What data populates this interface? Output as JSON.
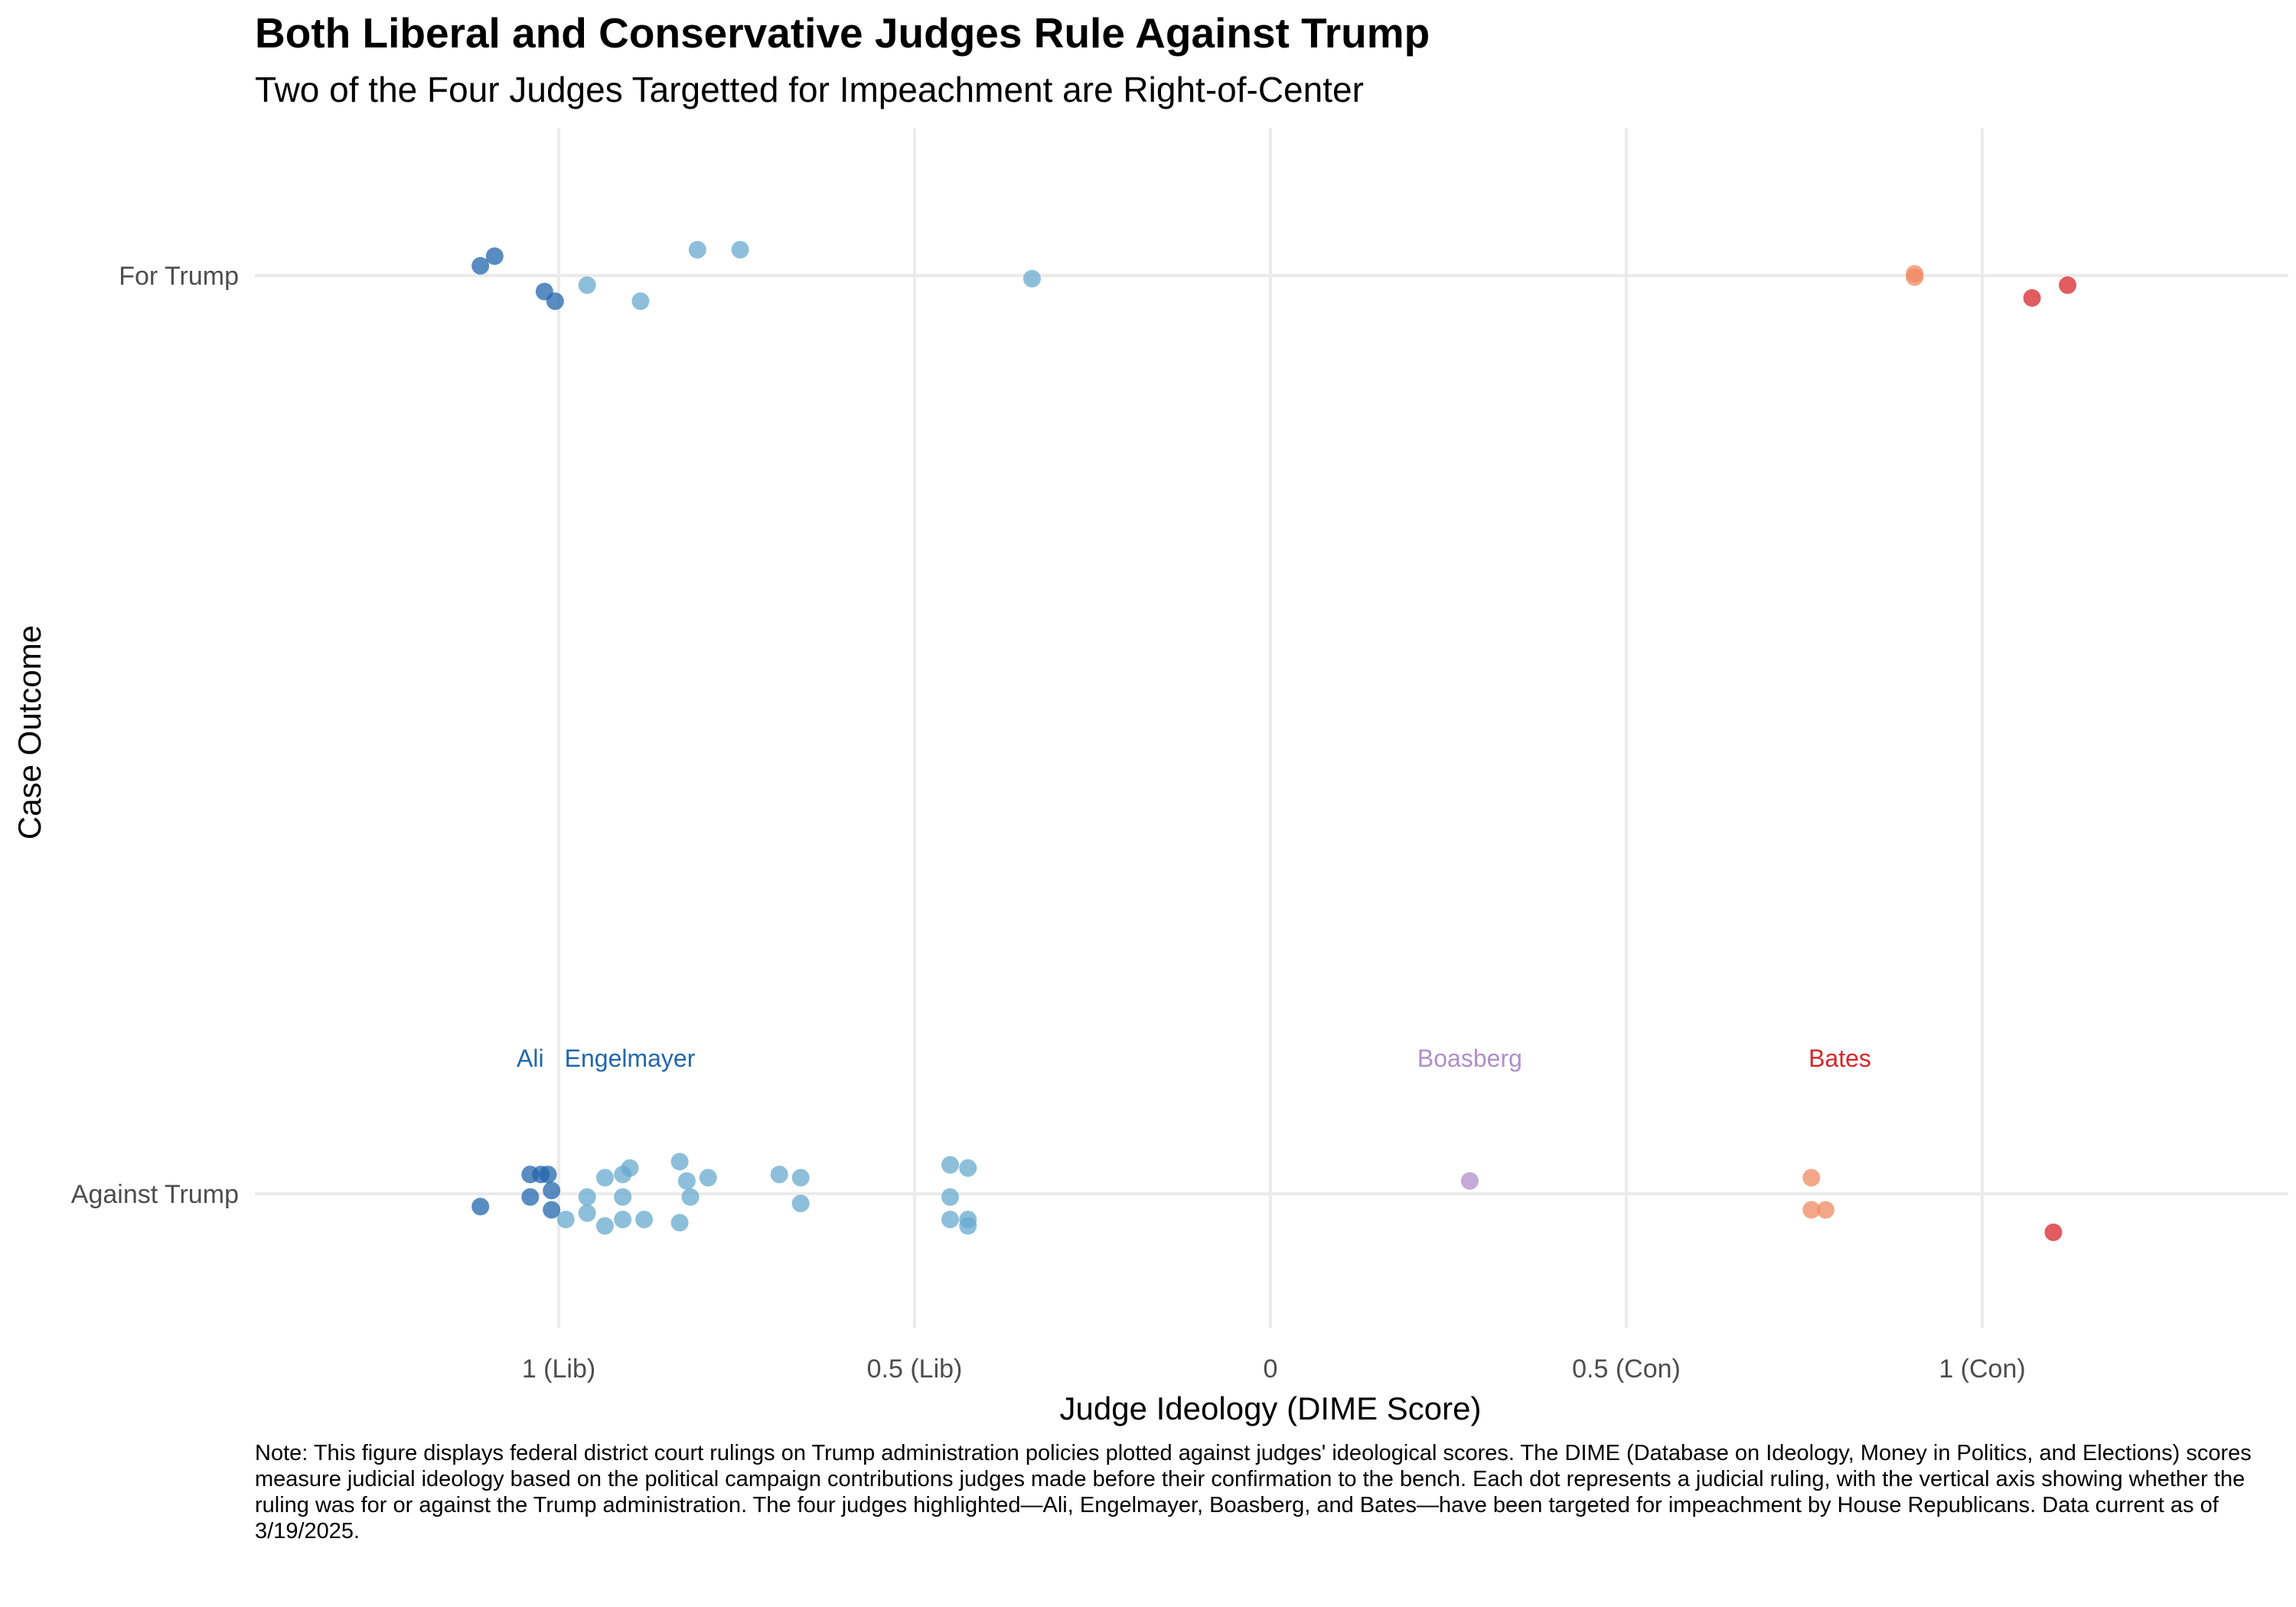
{
  "chart_data": {
    "type": "scatter",
    "title": "Both Liberal and Conservative Judges Rule Against Trump",
    "subtitle": "Two of the Four Judges Targetted for Impeachment are Right-of-Center",
    "xlabel": "Judge Ideology (DIME Score)",
    "ylabel": "Case Outcome",
    "xlim": [
      -1.43,
      1.43
    ],
    "x_ticks": [
      {
        "value": -1,
        "label": "1 (Lib)"
      },
      {
        "value": -0.5,
        "label": "0.5 (Lib)"
      },
      {
        "value": 0,
        "label": "0"
      },
      {
        "value": 0.5,
        "label": "0.5 (Con)"
      },
      {
        "value": 1,
        "label": "1 (Con)"
      }
    ],
    "categories": [
      "For Trump",
      "Against Trump"
    ],
    "grid": true,
    "legend": "none",
    "colors": {
      "dark_blue": "#2166ac",
      "light_blue": "#67a9cf",
      "purple": "#b08ecb",
      "salmon": "#ef8a62",
      "red": "#d6262a",
      "gridline": "#ebebeb"
    },
    "points": [
      {
        "x": -1.11,
        "y": "For Trump",
        "jitter": 0.03,
        "color": "dark_blue"
      },
      {
        "x": -1.09,
        "y": "For Trump",
        "jitter": 0.06,
        "color": "dark_blue"
      },
      {
        "x": -1.02,
        "y": "For Trump",
        "jitter": -0.05,
        "color": "dark_blue"
      },
      {
        "x": -1.005,
        "y": "For Trump",
        "jitter": -0.08,
        "color": "dark_blue"
      },
      {
        "x": -0.96,
        "y": "For Trump",
        "jitter": -0.03,
        "color": "light_blue"
      },
      {
        "x": -0.885,
        "y": "For Trump",
        "jitter": -0.08,
        "color": "light_blue"
      },
      {
        "x": -0.805,
        "y": "For Trump",
        "jitter": 0.08,
        "color": "light_blue"
      },
      {
        "x": -0.745,
        "y": "For Trump",
        "jitter": 0.08,
        "color": "light_blue"
      },
      {
        "x": -0.335,
        "y": "For Trump",
        "jitter": -0.01,
        "color": "light_blue"
      },
      {
        "x": 0.905,
        "y": "For Trump",
        "jitter": 0.005,
        "color": "salmon"
      },
      {
        "x": 0.905,
        "y": "For Trump",
        "jitter": -0.005,
        "color": "salmon"
      },
      {
        "x": 1.07,
        "y": "For Trump",
        "jitter": -0.07,
        "color": "red"
      },
      {
        "x": 1.12,
        "y": "For Trump",
        "jitter": -0.03,
        "color": "red"
      },
      {
        "x": -1.11,
        "y": "Against Trump",
        "jitter": -0.04,
        "color": "dark_blue"
      },
      {
        "x": -1.04,
        "y": "Against Trump",
        "jitter": 0.06,
        "color": "dark_blue"
      },
      {
        "x": -1.025,
        "y": "Against Trump",
        "jitter": 0.06,
        "color": "dark_blue"
      },
      {
        "x": -1.015,
        "y": "Against Trump",
        "jitter": 0.06,
        "color": "dark_blue"
      },
      {
        "x": -1.04,
        "y": "Against Trump",
        "jitter": -0.01,
        "color": "dark_blue"
      },
      {
        "x": -1.01,
        "y": "Against Trump",
        "jitter": 0.01,
        "color": "dark_blue"
      },
      {
        "x": -1.01,
        "y": "Against Trump",
        "jitter": -0.05,
        "color": "dark_blue"
      },
      {
        "x": -0.99,
        "y": "Against Trump",
        "jitter": -0.08,
        "color": "light_blue"
      },
      {
        "x": -0.96,
        "y": "Against Trump",
        "jitter": -0.01,
        "color": "light_blue"
      },
      {
        "x": -0.96,
        "y": "Against Trump",
        "jitter": -0.06,
        "color": "light_blue"
      },
      {
        "x": -0.935,
        "y": "Against Trump",
        "jitter": 0.05,
        "color": "light_blue"
      },
      {
        "x": -0.935,
        "y": "Against Trump",
        "jitter": -0.1,
        "color": "light_blue"
      },
      {
        "x": -0.91,
        "y": "Against Trump",
        "jitter": 0.06,
        "color": "light_blue"
      },
      {
        "x": -0.91,
        "y": "Against Trump",
        "jitter": -0.01,
        "color": "light_blue"
      },
      {
        "x": -0.91,
        "y": "Against Trump",
        "jitter": -0.08,
        "color": "light_blue"
      },
      {
        "x": -0.9,
        "y": "Against Trump",
        "jitter": 0.08,
        "color": "light_blue"
      },
      {
        "x": -0.88,
        "y": "Against Trump",
        "jitter": -0.08,
        "color": "light_blue"
      },
      {
        "x": -0.83,
        "y": "Against Trump",
        "jitter": 0.1,
        "color": "light_blue"
      },
      {
        "x": -0.83,
        "y": "Against Trump",
        "jitter": -0.09,
        "color": "light_blue"
      },
      {
        "x": -0.82,
        "y": "Against Trump",
        "jitter": 0.04,
        "color": "light_blue"
      },
      {
        "x": -0.815,
        "y": "Against Trump",
        "jitter": -0.01,
        "color": "light_blue"
      },
      {
        "x": -0.79,
        "y": "Against Trump",
        "jitter": 0.05,
        "color": "light_blue"
      },
      {
        "x": -0.69,
        "y": "Against Trump",
        "jitter": 0.06,
        "color": "light_blue"
      },
      {
        "x": -0.66,
        "y": "Against Trump",
        "jitter": 0.05,
        "color": "light_blue"
      },
      {
        "x": -0.66,
        "y": "Against Trump",
        "jitter": -0.03,
        "color": "light_blue"
      },
      {
        "x": -0.45,
        "y": "Against Trump",
        "jitter": 0.09,
        "color": "light_blue"
      },
      {
        "x": -0.425,
        "y": "Against Trump",
        "jitter": 0.08,
        "color": "light_blue"
      },
      {
        "x": -0.45,
        "y": "Against Trump",
        "jitter": -0.01,
        "color": "light_blue"
      },
      {
        "x": -0.45,
        "y": "Against Trump",
        "jitter": -0.08,
        "color": "light_blue"
      },
      {
        "x": -0.425,
        "y": "Against Trump",
        "jitter": -0.08,
        "color": "light_blue"
      },
      {
        "x": -0.425,
        "y": "Against Trump",
        "jitter": -0.1,
        "color": "light_blue"
      },
      {
        "x": 0.28,
        "y": "Against Trump",
        "jitter": 0.04,
        "color": "purple"
      },
      {
        "x": 0.76,
        "y": "Against Trump",
        "jitter": 0.05,
        "color": "salmon"
      },
      {
        "x": 0.76,
        "y": "Against Trump",
        "jitter": -0.05,
        "color": "salmon"
      },
      {
        "x": 0.78,
        "y": "Against Trump",
        "jitter": -0.05,
        "color": "salmon"
      },
      {
        "x": 1.1,
        "y": "Against Trump",
        "jitter": -0.12,
        "color": "red"
      }
    ],
    "annotations": [
      {
        "text": "Ali",
        "x": -1.04,
        "color": "dark_blue"
      },
      {
        "text": "Engelmayer",
        "x": -0.9,
        "color": "dark_blue"
      },
      {
        "text": "Boasberg",
        "x": 0.28,
        "color": "purple"
      },
      {
        "text": "Bates",
        "x": 0.8,
        "color": "red"
      }
    ]
  },
  "caption": "Note: This figure displays federal district court rulings on Trump administration policies plotted against judges' ideological scores. The DIME (Database on Ideology, Money in Politics, and Elections) scores measure judicial ideology based on the political campaign contributions judges made before their confirmation to the bench. Each dot represents a judicial ruling, with the vertical axis showing whether the ruling was for or against the Trump administration. The four judges highlighted—Ali, Engelmayer, Boasberg, and Bates—have been targeted for impeachment by House Republicans. Data current as of 3/19/2025."
}
